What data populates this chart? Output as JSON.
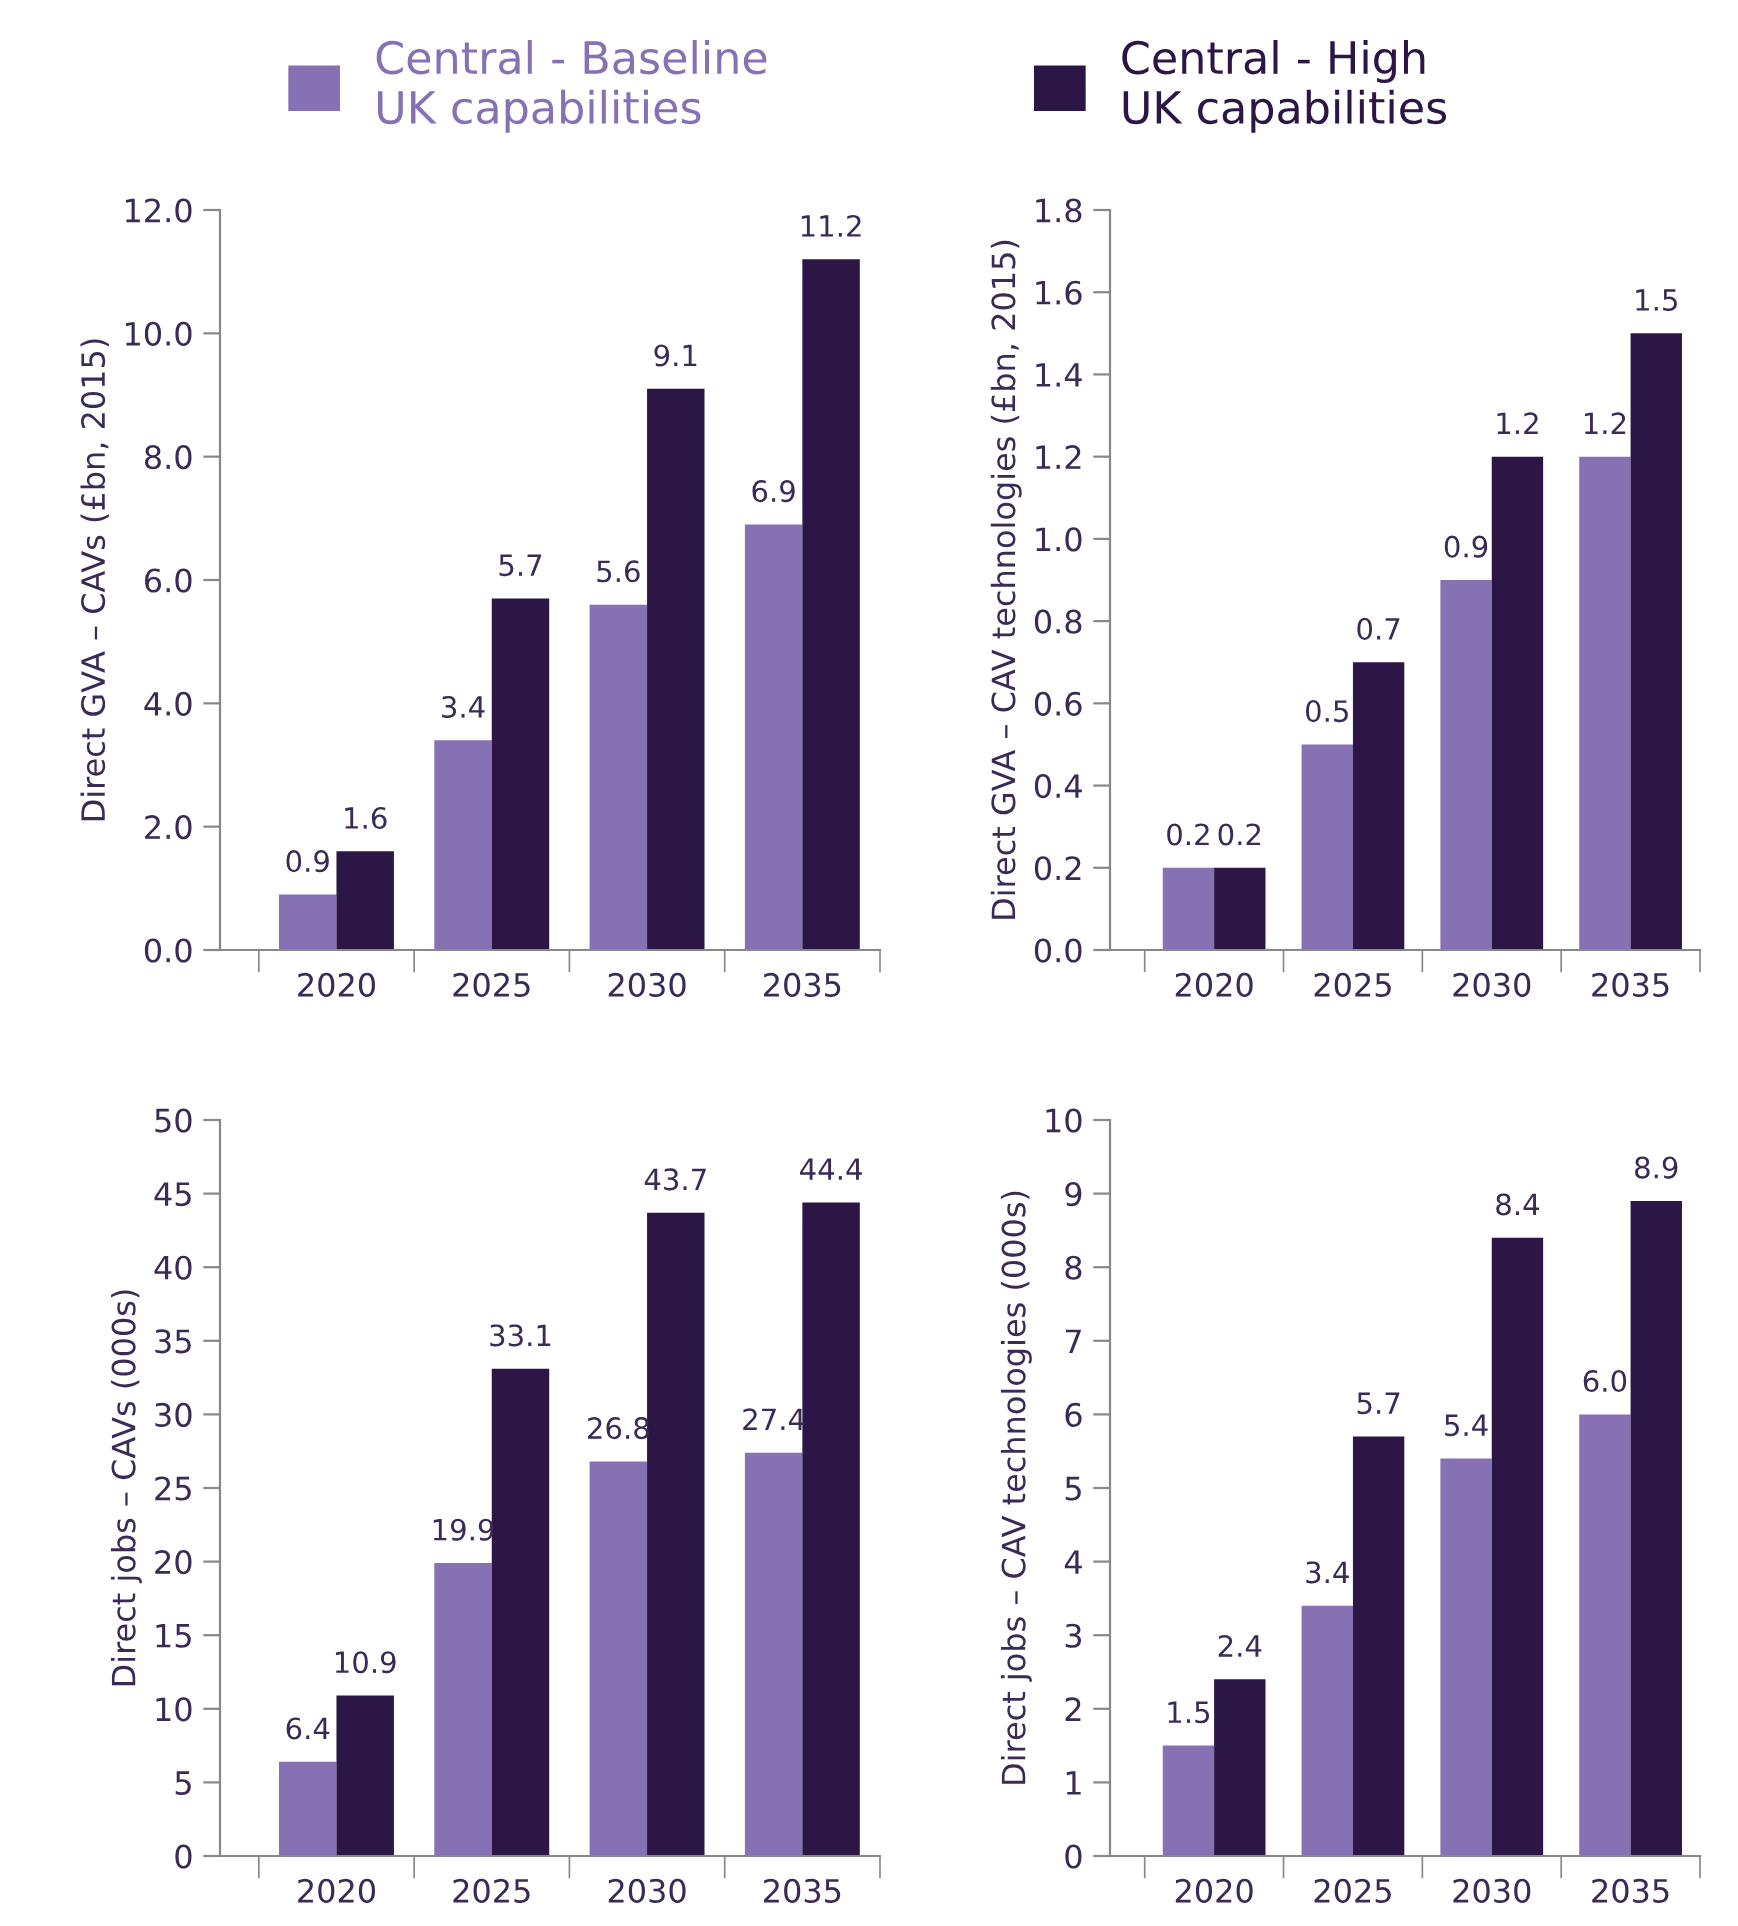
{
  "chart_data": [
    {
      "type": "bar",
      "categories": [
        "2020",
        "2025",
        "2030",
        "2035"
      ],
      "ylabel": "Direct GVA – CAVs (£bn, 2015)",
      "ylim": [
        0,
        12
      ],
      "yticks": [
        {
          "value": 0,
          "label": "0.0"
        },
        {
          "value": 2,
          "label": "2.0"
        },
        {
          "value": 4,
          "label": "4.0"
        },
        {
          "value": 6,
          "label": "6.0"
        },
        {
          "value": 8,
          "label": "8.0"
        },
        {
          "value": 10,
          "label": "10.0"
        },
        {
          "value": 12,
          "label": "12.0"
        }
      ],
      "data_labels": true,
      "legend": "top",
      "series": [
        {
          "name": "Central - Baseline\nUK capabilities",
          "color": "#8571b3",
          "values": [
            0.9,
            3.4,
            5.6,
            6.9
          ]
        },
        {
          "name": "Central - High\nUK capabilities",
          "color": "#2b1646",
          "values": [
            1.6,
            5.7,
            9.1,
            11.2
          ]
        }
      ]
    },
    {
      "type": "bar",
      "categories": [
        "2020",
        "2025",
        "2030",
        "2035"
      ],
      "ylabel": "Direct GVA – CAV technologies (£bn, 2015)",
      "ylim": [
        0,
        1.8
      ],
      "yticks": [
        {
          "value": 0,
          "label": "0.0"
        },
        {
          "value": 0.2,
          "label": "0.2"
        },
        {
          "value": 0.4,
          "label": "0.4"
        },
        {
          "value": 0.6,
          "label": "0.6"
        },
        {
          "value": 0.8,
          "label": "0.8"
        },
        {
          "value": 1.0,
          "label": "1.0"
        },
        {
          "value": 1.2,
          "label": "1.2"
        },
        {
          "value": 1.4,
          "label": "1.4"
        },
        {
          "value": 1.6,
          "label": "1.6"
        },
        {
          "value": 1.8,
          "label": "1.8"
        }
      ],
      "data_labels": true,
      "series": [
        {
          "color": "#8571b3",
          "values": [
            0.2,
            0.5,
            0.9,
            1.2
          ]
        },
        {
          "color": "#2b1646",
          "values": [
            0.2,
            0.7,
            1.2,
            1.5
          ]
        }
      ]
    },
    {
      "type": "bar",
      "categories": [
        "2020",
        "2025",
        "2030",
        "2035"
      ],
      "ylabel": "Direct jobs – CAVs (000s)",
      "ylim": [
        0,
        50
      ],
      "yticks": [
        0,
        5,
        10,
        15,
        20,
        25,
        30,
        35,
        40,
        45,
        50
      ],
      "data_labels": true,
      "series": [
        {
          "color": "#8571b3",
          "values": [
            6.4,
            19.9,
            26.8,
            27.4
          ]
        },
        {
          "color": "#2b1646",
          "values": [
            10.9,
            33.1,
            43.7,
            44.4
          ]
        }
      ]
    },
    {
      "type": "bar",
      "categories": [
        "2020",
        "2025",
        "2030",
        "2035"
      ],
      "ylabel": "Direct jobs – CAV technologies (000s)",
      "ylim": [
        0,
        10
      ],
      "yticks": [
        0,
        1,
        2,
        3,
        4,
        5,
        6,
        7,
        8,
        9,
        10
      ],
      "data_labels": true,
      "series": [
        {
          "color": "#8571b3",
          "values": [
            1.5,
            3.4,
            5.4,
            6.0
          ],
          "value_labels": [
            "1.5",
            "3.4",
            "5.4",
            "6.0"
          ]
        },
        {
          "color": "#2b1646",
          "values": [
            2.4,
            5.7,
            8.4,
            8.9
          ]
        }
      ]
    }
  ]
}
